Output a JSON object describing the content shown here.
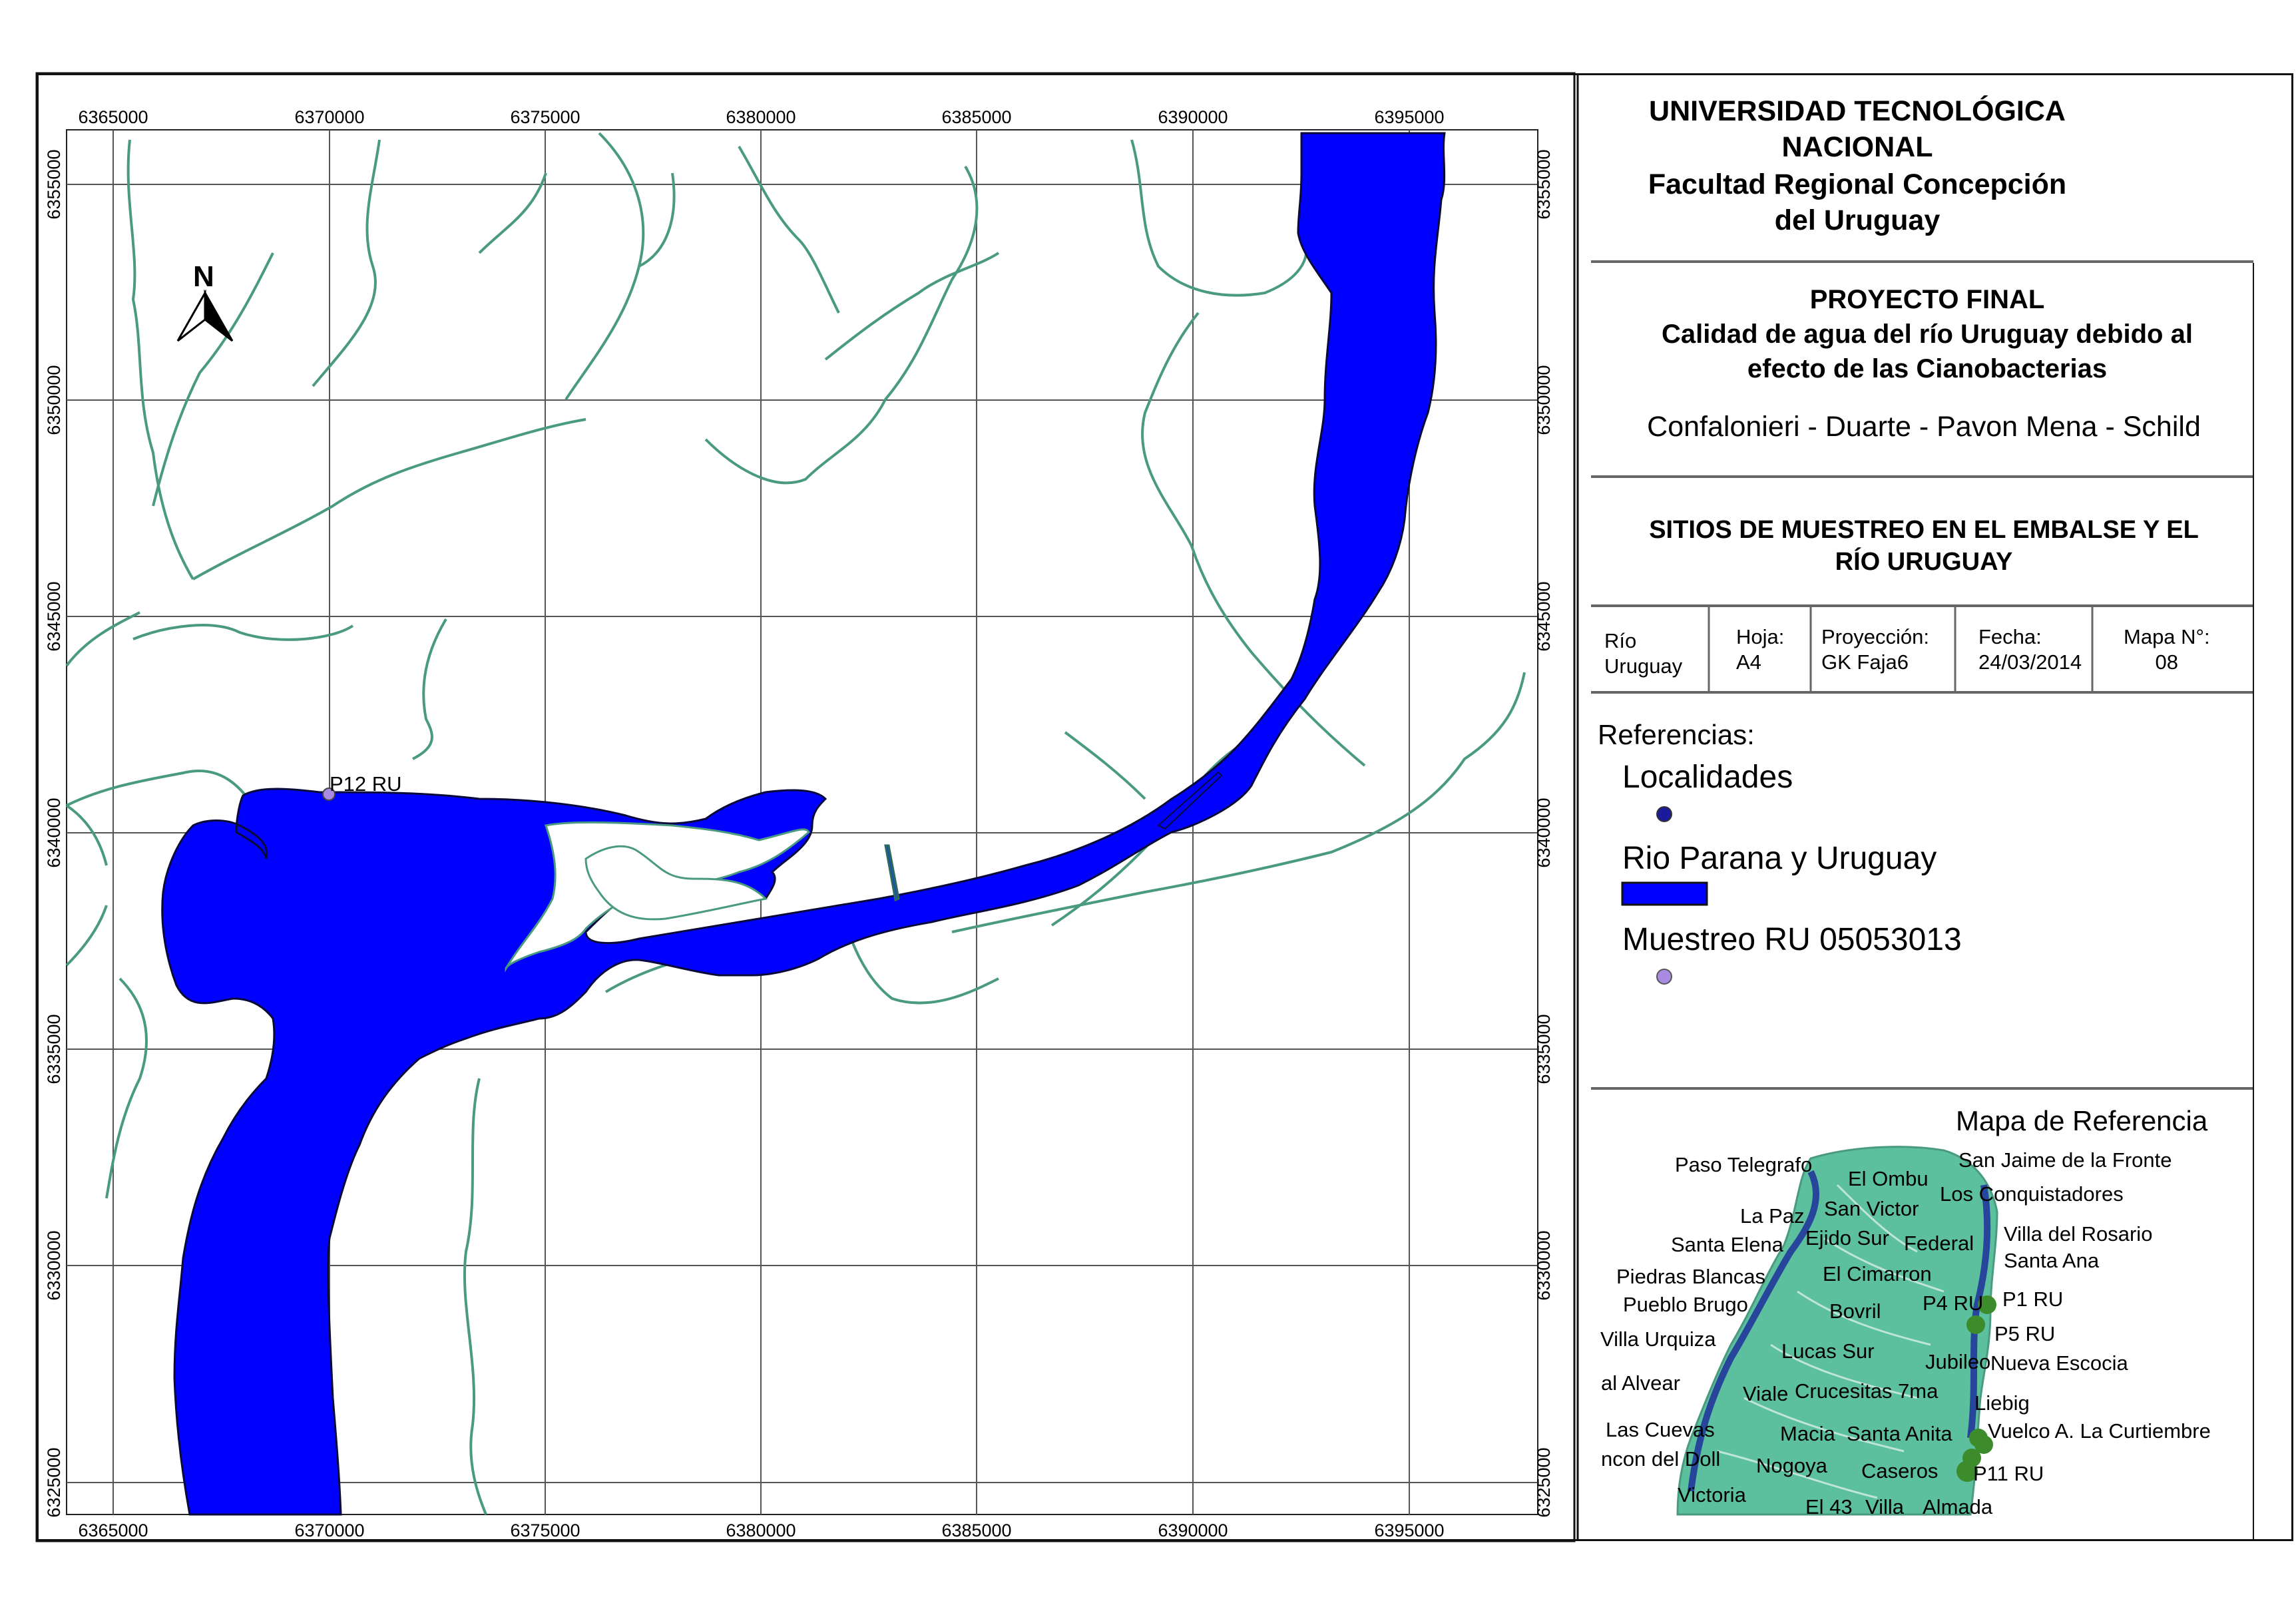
{
  "map": {
    "x_ticks": [
      "6365000",
      "6370000",
      "6375000",
      "6380000",
      "6385000",
      "6390000",
      "6395000"
    ],
    "y_ticks": [
      "6355000",
      "6350000",
      "6345000",
      "6340000",
      "6335000",
      "6330000",
      "6325000"
    ],
    "north_label": "N",
    "sample_point_label": "P12 RU",
    "colors": {
      "water": "#0000ff",
      "streams": "#4a9a82",
      "grid": "#555555",
      "sample": "#a98be3",
      "locality": "#1a1a9a"
    }
  },
  "title_block": {
    "institution_line1": "UNIVERSIDAD TECNOLÓGICA",
    "institution_line2": "NACIONAL",
    "faculty_line1": "Facultad Regional Concepción",
    "faculty_line2": "del Uruguay",
    "project_line1": "PROYECTO FINAL",
    "project_line2": "Calidad de agua del río Uruguay debido al",
    "project_line3": "efecto de las Cianobacterias",
    "authors": "Confalonieri - Duarte - Pavon Mena - Schild",
    "map_title_line1": "SITIOS DE MUESTREO EN EL EMBALSE Y EL",
    "map_title_line2": "RÍO URUGUAY"
  },
  "info_table": {
    "col1_line1": "Río",
    "col1_line2": "Uruguay",
    "hoja_label": "Hoja:",
    "hoja_value": "A4",
    "proj_label": "Proyección:",
    "proj_value": "GK Faja6",
    "fecha_label": "Fecha:",
    "fecha_value": "24/03/2014",
    "mapa_label": "Mapa N°:",
    "mapa_value": "08"
  },
  "legend": {
    "heading": "Referencias:",
    "item1": "Localidades",
    "item2": "Rio Parana y Uruguay",
    "item3": "Muestreo RU 05053013"
  },
  "reference_map": {
    "title": "Mapa de Referencia",
    "labels": [
      "Paso Telegrafo",
      "San Jaime de la Fronte",
      "El Ombu",
      "Los Conquistadores",
      "La Paz",
      "San Victor",
      "Villa del Rosario",
      "Santa Elena",
      "Ejido Sur",
      "Federal",
      "Santa Ana",
      "Piedras Blancas",
      "El Cimarron",
      "P1 RU",
      "Pueblo Brugo",
      "Bovril",
      "P4 RU",
      "P5 RU",
      "Villa Urquiza",
      "Lucas Sur",
      "Jubileo",
      "Nueva Escocia",
      "al Alvear",
      "Viale",
      "Crucesitas 7ma",
      "Liebig",
      "Las Cuevas",
      "Macia",
      "Santa Anita",
      "Vuelco A. La Curtiembre",
      "ncon del Doll",
      "Nogoya",
      "Caseros",
      "P11 RU",
      "Victoria",
      "El 43",
      "Villa",
      "Almada"
    ]
  }
}
